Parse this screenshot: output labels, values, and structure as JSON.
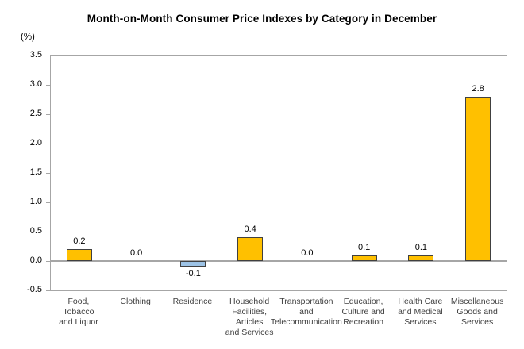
{
  "chart_data": {
    "type": "bar",
    "title": "Month-on-Month Consumer Price Indexes by Category in December",
    "ylabel": "(%)",
    "xlabel": "",
    "ylim": [
      -0.5,
      3.5
    ],
    "yticks": [
      "3.5",
      "3.0",
      "2.5",
      "2.0",
      "1.5",
      "1.0",
      "0.5",
      "0.0",
      "-0.5"
    ],
    "grid": false,
    "legend": "none",
    "categories": [
      [
        "Food,",
        "Tobacco",
        "and Liquor"
      ],
      [
        "Clothing"
      ],
      [
        "Residence"
      ],
      [
        "Household",
        "Facilities,",
        "Articles",
        "and Services"
      ],
      [
        "Transportation",
        "and",
        "Telecommunication"
      ],
      [
        "Education,",
        "Culture and",
        "Recreation"
      ],
      [
        "Health Care",
        "and Medical",
        "Services"
      ],
      [
        "Miscellaneous",
        "Goods and",
        "Services"
      ]
    ],
    "values": [
      0.2,
      0.0,
      -0.1,
      0.4,
      0.0,
      0.1,
      0.1,
      2.8
    ],
    "labels": [
      "0.2",
      "0.0",
      "-0.1",
      "0.4",
      "0.0",
      "0.1",
      "0.1",
      "2.8"
    ]
  },
  "colors": {
    "bar_positive": "#FFC000",
    "bar_negative": "#9DC3E6",
    "bar_border": "#404040",
    "axis_frame": "#A6A6A6",
    "zero_line": "#A6A6A6",
    "title_text": "#000000",
    "axis_text": "#000000",
    "category_text": "#404040"
  }
}
